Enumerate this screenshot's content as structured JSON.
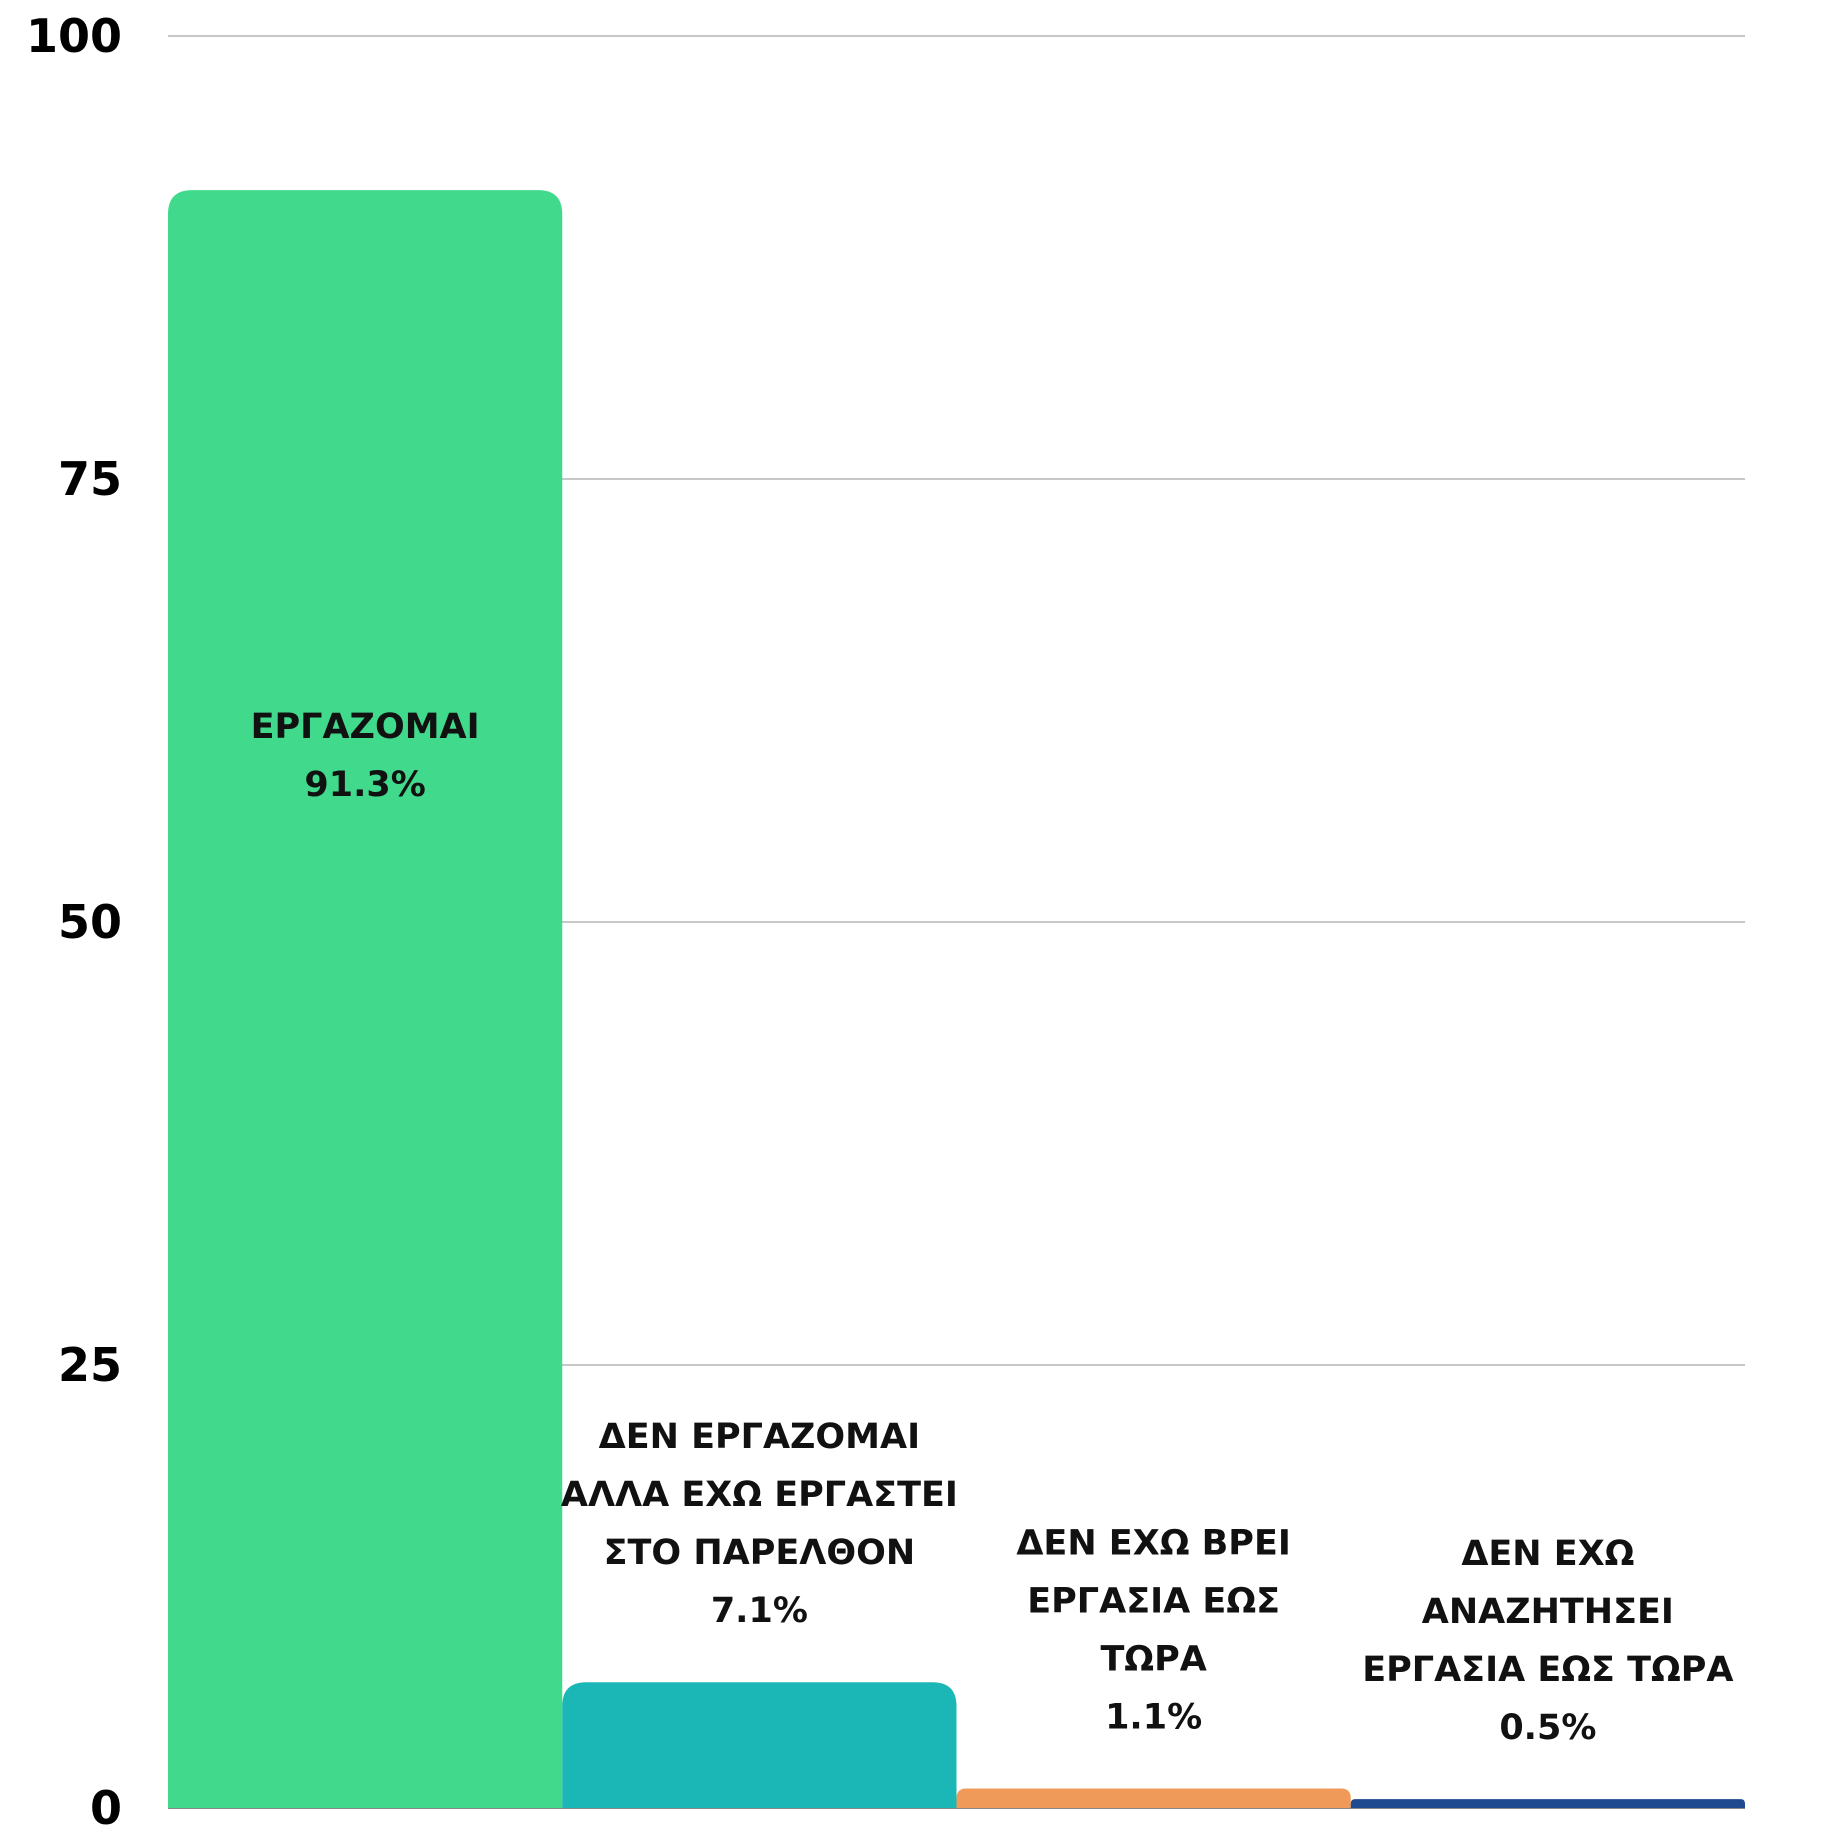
{
  "chart_data": {
    "type": "bar",
    "title": "",
    "xlabel": "",
    "ylabel": "",
    "ylim": [
      0,
      100
    ],
    "y_ticks": [
      0,
      25,
      50,
      75,
      100
    ],
    "grid": true,
    "categories": [
      "ΕΡΓΑΖΟΜΑΙ",
      "ΔΕΝ ΕΡΓΑΖΟΜΑΙ ΑΛΛΑ ΕΧΩ ΕΡΓΑΣΤΕΙ ΣΤΟ ΠΑΡΕΛΘΟΝ",
      "ΔΕΝ ΕΧΩ ΒΡΕΙ ΕΡΓΑΣΙΑ ΕΩΣ ΤΩΡΑ",
      "ΔΕΝ ΕΧΩ ΑΝΑΖΗΤΗΣΕΙ ΕΡΓΑΣΙΑ ΕΩΣ ΤΩΡΑ"
    ],
    "values": [
      91.3,
      7.1,
      1.1,
      0.5
    ],
    "bars": [
      {
        "label_lines": [
          "ΕΡΓΑΖΟΜΑΙ"
        ],
        "value_label": "91.3%",
        "value": 91.3,
        "color": "#41d98b",
        "label_position": "inside"
      },
      {
        "label_lines": [
          "ΔΕΝ ΕΡΓΑΖΟΜΑΙ",
          "ΑΛΛΑ ΕΧΩ ΕΡΓΑΣΤΕΙ",
          "ΣΤΟ ΠΑΡΕΛΘΟΝ"
        ],
        "value_label": "7.1%",
        "value": 7.1,
        "color": "#1bb7b6",
        "label_position": "above"
      },
      {
        "label_lines": [
          "ΔΕΝ ΕΧΩ ΒΡΕΙ",
          "ΕΡΓΑΣΙΑ ΕΩΣ",
          "ΤΩΡΑ"
        ],
        "value_label": "1.1%",
        "value": 1.1,
        "color": "#ef9a58",
        "label_position": "above"
      },
      {
        "label_lines": [
          "ΔΕΝ ΕΧΩ",
          "ΑΝΑΖΗΤΗΣΕΙ",
          "ΕΡΓΑΣΙΑ ΕΩΣ ΤΩΡΑ"
        ],
        "value_label": "0.5%",
        "value": 0.5,
        "color": "#1f4a8f",
        "label_position": "above"
      }
    ],
    "grid_color": "#c8c8c8"
  }
}
